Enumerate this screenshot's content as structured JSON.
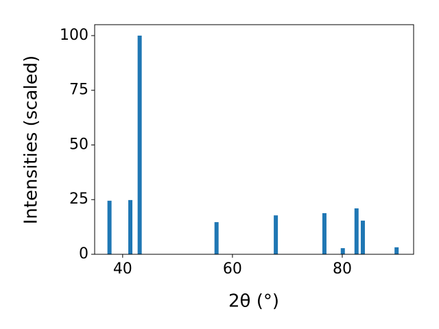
{
  "chart_data": {
    "type": "bar",
    "xlabel": "2θ (°)",
    "ylabel": "Intensities (scaled)",
    "x": [
      37.6,
      41.4,
      43.1,
      57.1,
      67.9,
      76.75,
      80.1,
      82.6,
      83.75,
      89.9
    ],
    "values": [
      24.5,
      24.8,
      100,
      14.7,
      17.8,
      18.8,
      2.8,
      21,
      15.4,
      3.2
    ],
    "color": "#1f77b4",
    "xlim": [
      34.9,
      93.0
    ],
    "xticks": [
      40,
      60,
      80
    ],
    "ylim": [
      0,
      105
    ],
    "yticks": [
      0,
      25,
      50,
      75,
      100
    ]
  }
}
